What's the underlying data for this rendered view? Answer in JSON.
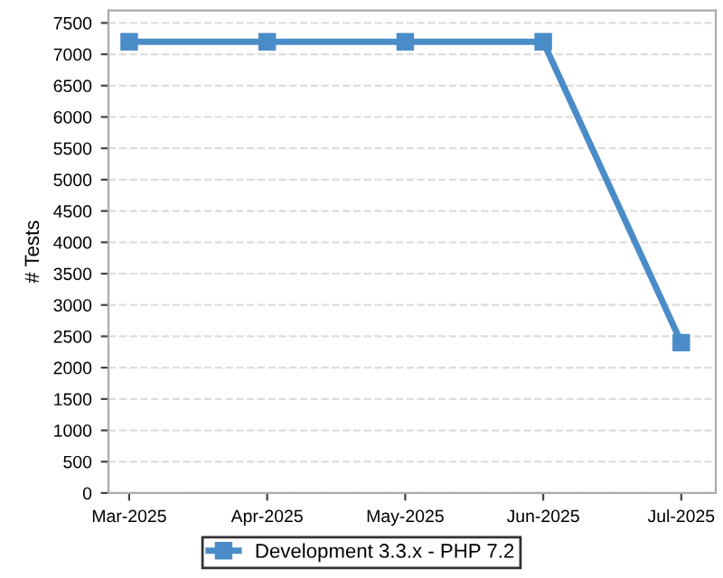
{
  "chart_data": {
    "type": "line",
    "ylabel": "# Tests",
    "categories": [
      "Mar-2025",
      "Apr-2025",
      "May-2025",
      "Jun-2025",
      "Jul-2025"
    ],
    "series": [
      {
        "name": "Development 3.3.x - PHP 7.2",
        "color": "#4a8cc7",
        "values": [
          7200,
          7200,
          7200,
          7200,
          2400
        ]
      }
    ],
    "ylim": [
      0,
      7700
    ],
    "yticks": [
      0,
      500,
      1000,
      1500,
      2000,
      2500,
      3000,
      3500,
      4000,
      4500,
      5000,
      5500,
      6000,
      6500,
      7000,
      7500
    ],
    "grid": "y",
    "legend": "bottom",
    "marker": "square",
    "line_style": "solid"
  }
}
